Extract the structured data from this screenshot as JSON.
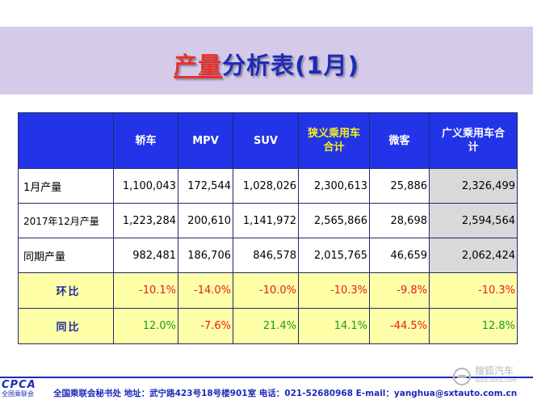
{
  "title": {
    "accent": "产量",
    "rest": "分析表(1月)"
  },
  "table": {
    "headers": [
      "轿车",
      "MPV",
      "SUV",
      "狭义乘用车合计",
      "微客",
      "广义乘用车合计"
    ],
    "rows": [
      {
        "label": "1月产量",
        "values": [
          "1,100,043",
          "172,544",
          "1,028,026",
          "2,300,613",
          "25,886",
          "2,326,499"
        ]
      },
      {
        "label": "2017年12月产量",
        "values": [
          "1,223,284",
          "200,610",
          "1,141,972",
          "2,565,866",
          "28,698",
          "2,594,564"
        ]
      },
      {
        "label": "同期产量",
        "values": [
          "982,481",
          "186,706",
          "846,578",
          "2,015,765",
          "46,659",
          "2,062,424"
        ]
      },
      {
        "label": "环比",
        "values": [
          "-10.1%",
          "-14.0%",
          "-10.0%",
          "-10.3%",
          "-9.8%",
          "-10.3%"
        ]
      },
      {
        "label": "同比",
        "values": [
          "12.0%",
          "-7.6%",
          "21.4%",
          "14.1%",
          "-44.5%",
          "12.8%"
        ]
      }
    ]
  },
  "colors": {
    "header_bg": "#2334e8",
    "negative": "#e81a1a",
    "positive": "#1a9a1a",
    "rate_row_bg": "#ffffa8",
    "highlight_header": "#f7f21a"
  },
  "footer": {
    "logo_brand": "CPCA",
    "logo_sub": "全国乘联会",
    "contact": "全国乘联会秘书处  地址：武宁路423号18号楼901室  电话：021-52680968  E-mail：yanghua@sxtauto.com.cn"
  },
  "watermark": {
    "text": "搜狐汽车",
    "url": "auto.sohu.com",
    "icon": "sohu-car-icon"
  }
}
